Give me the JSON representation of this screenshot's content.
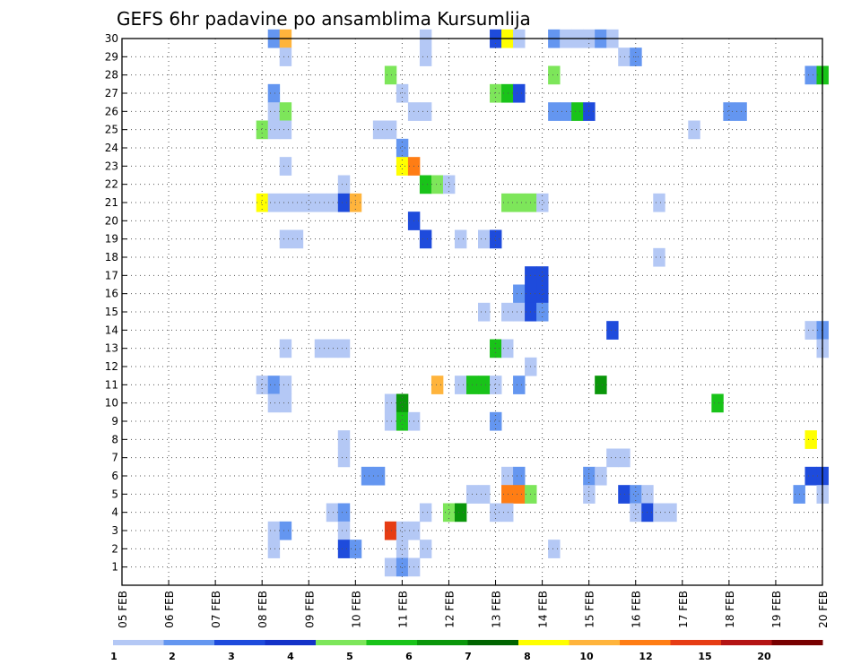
{
  "chart_data": {
    "type": "heatmap",
    "title": "GEFS 6hr padavine po ansamblima Kursumlija",
    "x_tick_labels": [
      "05 FEB",
      "06 FEB",
      "07 FEB",
      "08 FEB",
      "09 FEB",
      "10 FEB",
      "11 FEB",
      "12 FEB",
      "13 FEB",
      "14 FEB",
      "15 FEB",
      "16 FEB",
      "17 FEB",
      "18 FEB",
      "19 FEB",
      "20 FEB"
    ],
    "x_range_days": [
      0,
      15
    ],
    "x_step_days": 0.25,
    "y_tick_labels": [
      "1",
      "2",
      "3",
      "4",
      "5",
      "6",
      "7",
      "8",
      "9",
      "10",
      "11",
      "12",
      "13",
      "14",
      "15",
      "16",
      "17",
      "18",
      "19",
      "20",
      "21",
      "22",
      "23",
      "24",
      "25",
      "26",
      "27",
      "28",
      "29",
      "30"
    ],
    "y_range": [
      0,
      30
    ],
    "grid": true,
    "legend": {
      "placement": "bottom",
      "labels": [
        "1",
        "2",
        "3",
        "4",
        "5",
        "6",
        "7",
        "8",
        "10",
        "12",
        "15",
        "20"
      ],
      "colors": [
        "#b4c8f5",
        "#6496f0",
        "#1e4bdc",
        "#1432c8",
        "#7de65a",
        "#19c319",
        "#0a960a",
        "#006400",
        "#ffff00",
        "#ffb43c",
        "#ff7d14",
        "#e63c14",
        "#b41414",
        "#780000"
      ]
    },
    "cells": [
      {
        "m": 30,
        "t": [
          [
            3.25,
            2
          ],
          [
            3.5,
            10
          ],
          [
            6.5,
            1
          ],
          [
            8.0,
            3
          ],
          [
            8.25,
            9
          ],
          [
            8.5,
            1
          ],
          [
            9.25,
            2
          ],
          [
            9.5,
            1
          ],
          [
            9.75,
            1
          ],
          [
            10.0,
            1
          ],
          [
            10.25,
            2
          ],
          [
            10.5,
            1
          ]
        ]
      },
      {
        "m": 29,
        "t": [
          [
            3.5,
            1
          ],
          [
            6.5,
            1
          ],
          [
            10.75,
            1
          ],
          [
            11.0,
            2
          ]
        ]
      },
      {
        "m": 28,
        "t": [
          [
            5.75,
            5
          ],
          [
            9.25,
            5
          ],
          [
            14.75,
            2
          ],
          [
            15.0,
            6
          ]
        ]
      },
      {
        "m": 27,
        "t": [
          [
            3.25,
            2
          ],
          [
            6.0,
            1
          ],
          [
            8.0,
            5
          ],
          [
            8.25,
            6
          ],
          [
            8.5,
            3
          ]
        ]
      },
      {
        "m": 26,
        "t": [
          [
            3.25,
            1
          ],
          [
            3.5,
            5
          ],
          [
            6.25,
            1
          ],
          [
            6.5,
            1
          ],
          [
            9.25,
            2
          ],
          [
            9.5,
            2
          ],
          [
            9.75,
            6
          ],
          [
            10.0,
            3
          ],
          [
            13.0,
            2
          ],
          [
            13.25,
            2
          ]
        ]
      },
      {
        "m": 25,
        "t": [
          [
            3.0,
            5
          ],
          [
            3.25,
            1
          ],
          [
            3.5,
            1
          ],
          [
            5.5,
            1
          ],
          [
            5.75,
            1
          ],
          [
            12.25,
            1
          ]
        ]
      },
      {
        "m": 24,
        "t": [
          [
            6.0,
            2
          ]
        ]
      },
      {
        "m": 23,
        "t": [
          [
            3.5,
            1
          ],
          [
            6.0,
            9
          ],
          [
            6.25,
            11
          ]
        ]
      },
      {
        "m": 22,
        "t": [
          [
            4.75,
            1
          ],
          [
            6.5,
            6
          ],
          [
            6.75,
            5
          ],
          [
            7.0,
            1
          ]
        ]
      },
      {
        "m": 21,
        "t": [
          [
            3.0,
            9
          ],
          [
            3.25,
            1
          ],
          [
            3.5,
            1
          ],
          [
            3.75,
            1
          ],
          [
            4.0,
            1
          ],
          [
            4.25,
            1
          ],
          [
            4.5,
            1
          ],
          [
            4.75,
            3
          ],
          [
            5.0,
            10
          ],
          [
            8.25,
            5
          ],
          [
            8.5,
            5
          ],
          [
            8.75,
            5
          ],
          [
            9.0,
            1
          ],
          [
            11.5,
            1
          ]
        ]
      },
      {
        "m": 20,
        "t": [
          [
            6.25,
            3
          ]
        ]
      },
      {
        "m": 19,
        "t": [
          [
            3.5,
            1
          ],
          [
            3.75,
            1
          ],
          [
            6.5,
            3
          ],
          [
            7.25,
            1
          ],
          [
            7.75,
            1
          ],
          [
            8.0,
            3
          ]
        ]
      },
      {
        "m": 18,
        "t": [
          [
            11.5,
            1
          ]
        ]
      },
      {
        "m": 17,
        "t": [
          [
            8.75,
            3
          ],
          [
            9.0,
            3
          ]
        ]
      },
      {
        "m": 16,
        "t": [
          [
            8.5,
            2
          ],
          [
            8.75,
            3
          ],
          [
            9.0,
            3
          ]
        ]
      },
      {
        "m": 15,
        "t": [
          [
            7.75,
            1
          ],
          [
            8.25,
            1
          ],
          [
            8.5,
            1
          ],
          [
            8.75,
            3
          ],
          [
            9.0,
            2
          ]
        ]
      },
      {
        "m": 14,
        "t": [
          [
            10.5,
            3
          ],
          [
            14.75,
            1
          ],
          [
            15.0,
            2
          ]
        ]
      },
      {
        "m": 13,
        "t": [
          [
            3.5,
            1
          ],
          [
            4.25,
            1
          ],
          [
            4.5,
            1
          ],
          [
            4.75,
            1
          ],
          [
            8.0,
            6
          ],
          [
            8.25,
            1
          ],
          [
            15.0,
            1
          ]
        ]
      },
      {
        "m": 12,
        "t": [
          [
            8.75,
            1
          ]
        ]
      },
      {
        "m": 11,
        "t": [
          [
            3.0,
            1
          ],
          [
            3.25,
            2
          ],
          [
            3.5,
            1
          ],
          [
            6.75,
            10
          ],
          [
            7.25,
            1
          ],
          [
            7.5,
            6
          ],
          [
            7.75,
            6
          ],
          [
            8.0,
            1
          ],
          [
            8.5,
            2
          ],
          [
            10.25,
            7
          ]
        ]
      },
      {
        "m": 10,
        "t": [
          [
            3.25,
            1
          ],
          [
            3.5,
            1
          ],
          [
            5.75,
            1
          ],
          [
            6.0,
            7
          ],
          [
            12.75,
            6
          ]
        ]
      },
      {
        "m": 9,
        "t": [
          [
            5.75,
            1
          ],
          [
            6.0,
            6
          ],
          [
            6.25,
            1
          ],
          [
            8.0,
            2
          ]
        ]
      },
      {
        "m": 8,
        "t": [
          [
            4.75,
            1
          ],
          [
            14.75,
            9
          ]
        ]
      },
      {
        "m": 7,
        "t": [
          [
            4.75,
            1
          ],
          [
            10.5,
            1
          ],
          [
            10.75,
            1
          ]
        ]
      },
      {
        "m": 6,
        "t": [
          [
            5.25,
            2
          ],
          [
            5.5,
            2
          ],
          [
            8.25,
            1
          ],
          [
            8.5,
            2
          ],
          [
            10.0,
            2
          ],
          [
            10.25,
            1
          ],
          [
            14.75,
            3
          ],
          [
            15.0,
            3
          ]
        ]
      },
      {
        "m": 5,
        "t": [
          [
            7.5,
            1
          ],
          [
            7.75,
            1
          ],
          [
            8.25,
            11
          ],
          [
            8.5,
            11
          ],
          [
            8.75,
            5
          ],
          [
            10.0,
            1
          ],
          [
            10.75,
            3
          ],
          [
            11.0,
            2
          ],
          [
            11.25,
            1
          ],
          [
            14.5,
            2
          ],
          [
            15.0,
            1
          ]
        ]
      },
      {
        "m": 4,
        "t": [
          [
            4.5,
            1
          ],
          [
            4.75,
            2
          ],
          [
            6.5,
            1
          ],
          [
            7.0,
            5
          ],
          [
            7.25,
            7
          ],
          [
            8.0,
            1
          ],
          [
            8.25,
            1
          ],
          [
            11.0,
            1
          ],
          [
            11.25,
            3
          ],
          [
            11.5,
            1
          ],
          [
            11.75,
            1
          ]
        ]
      },
      {
        "m": 3,
        "t": [
          [
            3.25,
            1
          ],
          [
            3.5,
            2
          ],
          [
            4.75,
            1
          ],
          [
            5.75,
            12
          ],
          [
            6.0,
            1
          ],
          [
            6.25,
            1
          ]
        ]
      },
      {
        "m": 2,
        "t": [
          [
            3.25,
            1
          ],
          [
            4.75,
            3
          ],
          [
            5.0,
            2
          ],
          [
            6.0,
            1
          ],
          [
            6.5,
            1
          ],
          [
            9.25,
            1
          ]
        ]
      },
      {
        "m": 1,
        "t": [
          [
            5.75,
            1
          ],
          [
            6.0,
            2
          ],
          [
            6.25,
            1
          ]
        ]
      }
    ]
  }
}
